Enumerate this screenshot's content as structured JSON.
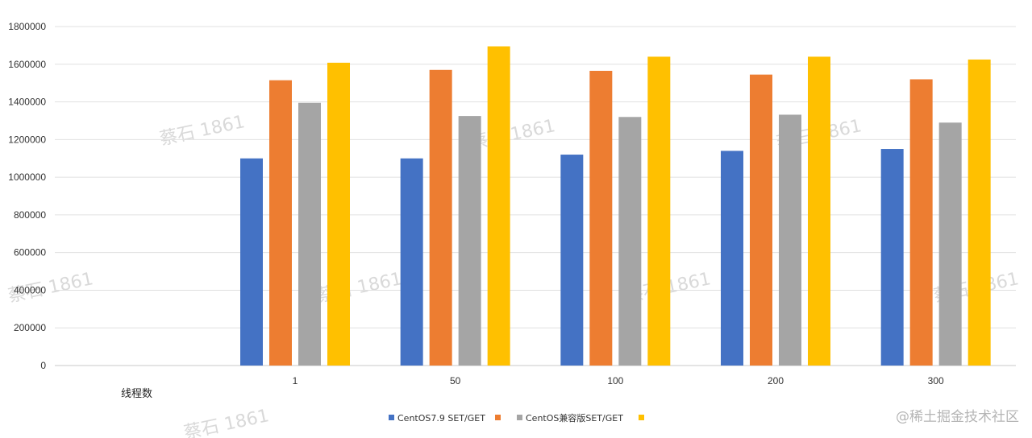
{
  "chart_data": {
    "type": "bar",
    "xlabel": "线程数",
    "ylabel": "",
    "categories": [
      "",
      "1",
      "50",
      "100",
      "200",
      "300"
    ],
    "ylim": [
      0,
      1800000
    ],
    "yticks": [
      0,
      200000,
      400000,
      600000,
      800000,
      1000000,
      1200000,
      1400000,
      1600000,
      1800000
    ],
    "grid": true,
    "legend": "bottom",
    "series": [
      {
        "name": "CentOS7.9 SET/GET",
        "color": "#4472C4",
        "values": [
          null,
          1100000,
          1100000,
          1120000,
          1140000,
          1150000
        ]
      },
      {
        "name": "",
        "color": "#ED7D31",
        "values": [
          null,
          1515000,
          1570000,
          1565000,
          1545000,
          1520000
        ]
      },
      {
        "name": "CentOS兼容版SET/GET",
        "color": "#A5A5A5",
        "values": [
          null,
          1395000,
          1325000,
          1320000,
          1332000,
          1290000
        ]
      },
      {
        "name": "",
        "color": "#FFC000",
        "values": [
          null,
          1608000,
          1695000,
          1640000,
          1640000,
          1625000
        ]
      }
    ]
  },
  "watermarks": [
    "蔡石 1861",
    "蔡石 1861",
    "蔡石 1861",
    "蔡石 1861",
    "蔡石 1861",
    "蔡石 1861",
    "蔡石 1861",
    "蔡石 1861"
  ],
  "site_mark": "@稀土掘金技术社区"
}
